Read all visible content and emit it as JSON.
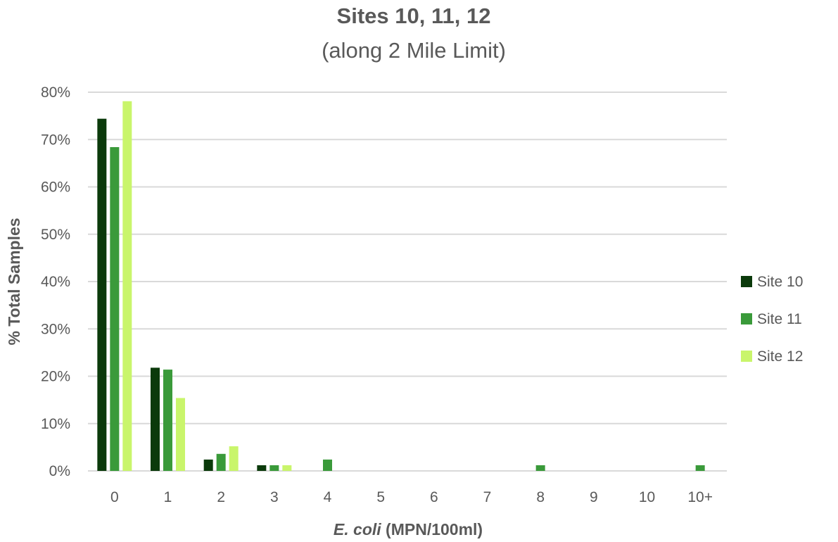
{
  "chart_data": {
    "type": "bar",
    "title": "Sites 10, 11, 12",
    "subtitle": "(along 2 Mile Limit)",
    "xlabel_italic": "E. coli",
    "xlabel_rest": " (MPN/100ml)",
    "ylabel": "% Total Samples",
    "categories": [
      "0",
      "1",
      "2",
      "3",
      "4",
      "5",
      "6",
      "7",
      "8",
      "9",
      "10",
      "10+"
    ],
    "ylim": [
      0,
      80
    ],
    "yticks": [
      0,
      10,
      20,
      30,
      40,
      50,
      60,
      70,
      80
    ],
    "ytick_labels": [
      "0%",
      "10%",
      "20%",
      "30%",
      "40%",
      "50%",
      "60%",
      "70%",
      "80%"
    ],
    "grid": true,
    "legend_position": "right",
    "series": [
      {
        "name": "Site 10",
        "color": "#0b3a0b",
        "values": [
          74.4,
          21.8,
          2.4,
          1.2,
          0,
          0,
          0,
          0,
          0,
          0,
          0,
          0
        ]
      },
      {
        "name": "Site 11",
        "color": "#3a9a3a",
        "values": [
          68.4,
          21.4,
          3.6,
          1.2,
          2.4,
          0,
          0,
          0,
          1.2,
          0,
          0,
          1.2
        ]
      },
      {
        "name": "Site 12",
        "color": "#c9f56b",
        "values": [
          78.1,
          15.4,
          5.2,
          1.2,
          0,
          0,
          0,
          0,
          0,
          0,
          0,
          0
        ]
      }
    ]
  }
}
